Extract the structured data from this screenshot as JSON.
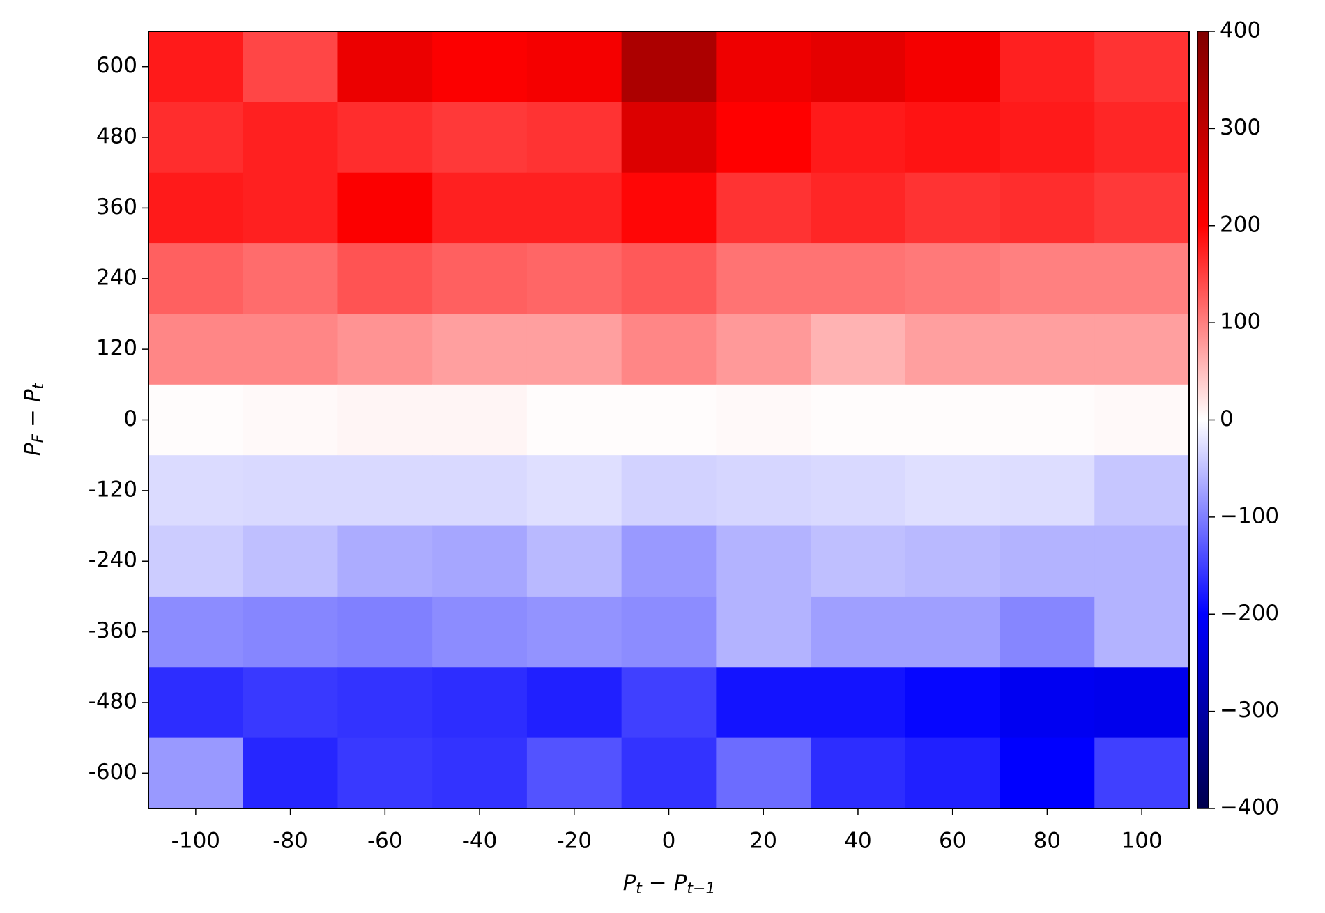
{
  "chart_data": {
    "type": "heatmap",
    "categories": [
      -100,
      -80,
      -60,
      -40,
      -20,
      0,
      20,
      40,
      60,
      80,
      100
    ],
    "y_categories": [
      600,
      480,
      360,
      240,
      120,
      0,
      -120,
      -240,
      -360,
      -480,
      -600
    ],
    "xlabel": [
      "P",
      "t",
      " − P",
      "t−1"
    ],
    "ylabel": [
      "P",
      "F",
      " − P",
      "t"
    ],
    "colormap": "seismic",
    "zlim": [
      -400,
      400
    ],
    "zticks": [
      {
        "value": -400,
        "label": "−400"
      },
      {
        "value": -300,
        "label": "−300"
      },
      {
        "value": -200,
        "label": "−200"
      },
      {
        "value": -100,
        "label": "−100"
      },
      0,
      100,
      200,
      300,
      400
    ],
    "z": [
      [
        180,
        145,
        230,
        205,
        215,
        330,
        225,
        240,
        215,
        175,
        160
      ],
      [
        165,
        175,
        165,
        155,
        160,
        255,
        200,
        180,
        185,
        180,
        170
      ],
      [
        180,
        175,
        205,
        175,
        175,
        195,
        160,
        170,
        160,
        165,
        155
      ],
      [
        125,
        115,
        135,
        125,
        120,
        130,
        110,
        110,
        105,
        100,
        100
      ],
      [
        95,
        95,
        85,
        75,
        75,
        95,
        80,
        60,
        75,
        75,
        75
      ],
      [
        2,
        5,
        8,
        8,
        2,
        2,
        5,
        2,
        2,
        2,
        5
      ],
      [
        -28,
        -30,
        -30,
        -30,
        -25,
        -35,
        -32,
        -30,
        -25,
        -27,
        -45
      ],
      [
        -40,
        -50,
        -65,
        -70,
        -55,
        -80,
        -60,
        -50,
        -55,
        -60,
        -60
      ],
      [
        -90,
        -95,
        -100,
        -90,
        -85,
        -90,
        -60,
        -75,
        -75,
        -95,
        -60
      ],
      [
        -165,
        -155,
        -160,
        -165,
        -175,
        -150,
        -185,
        -185,
        -195,
        -215,
        -220
      ],
      [
        -80,
        -170,
        -155,
        -160,
        -135,
        -160,
        -115,
        -165,
        -175,
        -200,
        -150
      ]
    ]
  }
}
